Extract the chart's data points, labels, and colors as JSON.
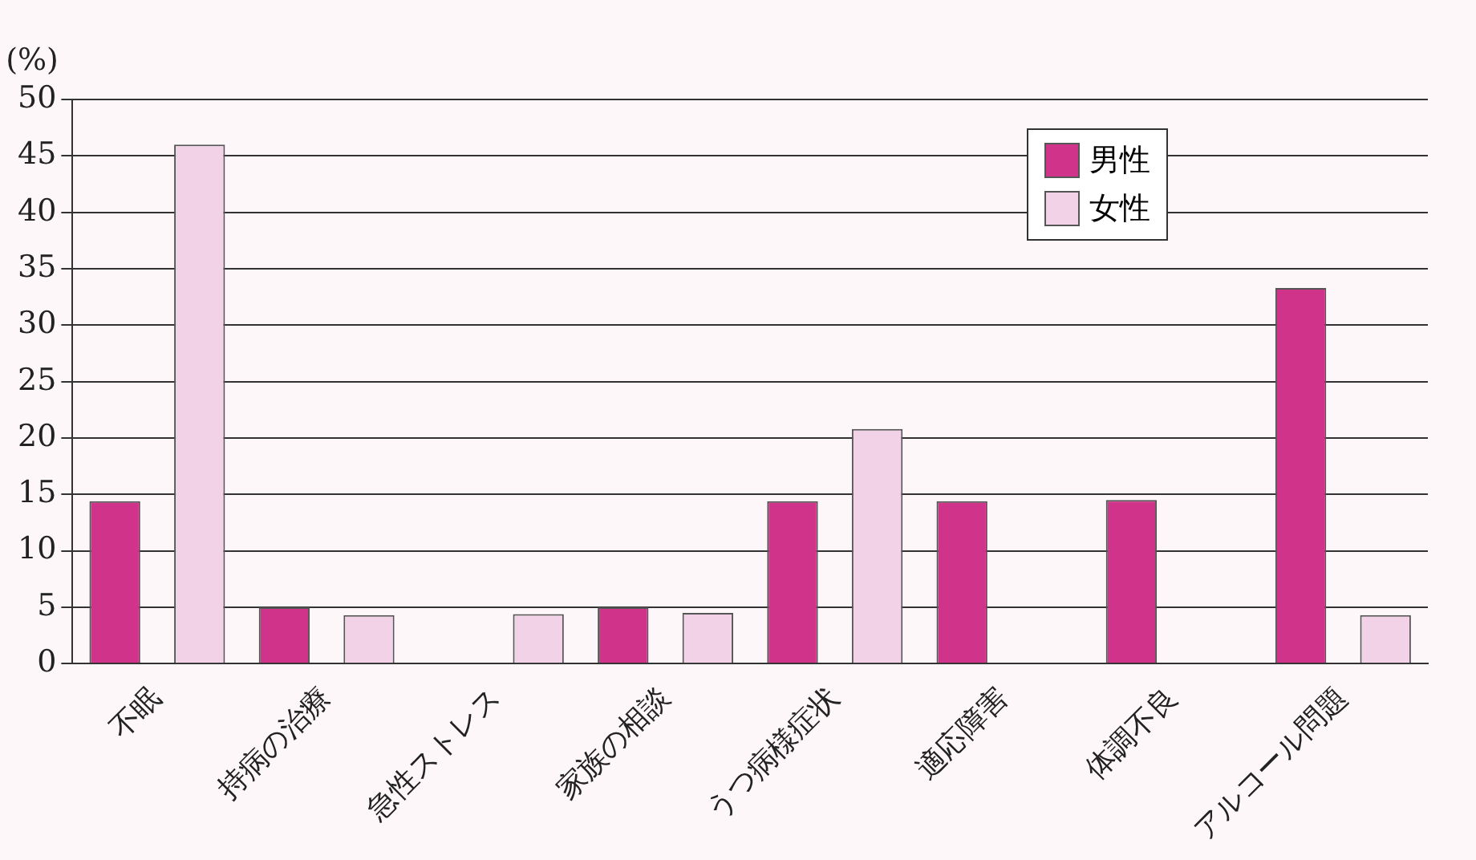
{
  "chart_data": {
    "type": "bar",
    "ylabel": "(%)",
    "categories": [
      "不眠",
      "持病の治療",
      "急性ストレス",
      "家族の相談",
      "うつ病様症状",
      "適応障害",
      "体調不良",
      "アルコール問題"
    ],
    "series": [
      {
        "name": "男性",
        "color": "#d0348a",
        "values": [
          14.4,
          5.0,
          0,
          5.0,
          14.4,
          14.4,
          14.5,
          33.3
        ]
      },
      {
        "name": "女性",
        "color": "#f2d2e6",
        "values": [
          46,
          4.3,
          4.4,
          4.5,
          20.8,
          0,
          0,
          4.3
        ]
      }
    ],
    "ylim": [
      0,
      50
    ],
    "yticks": [
      0,
      5,
      10,
      15,
      20,
      25,
      30,
      35,
      40,
      45,
      50
    ],
    "grid": "y",
    "legend": "top right"
  }
}
